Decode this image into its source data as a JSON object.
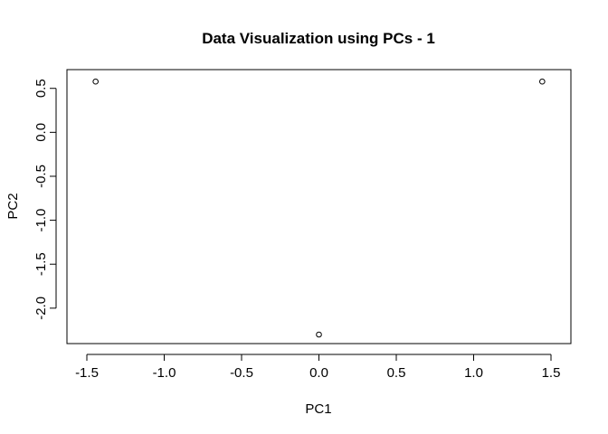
{
  "chart_data": {
    "type": "scatter",
    "title": "Data Visualization using PCs - 1",
    "xlabel": "PC1",
    "ylabel": "PC2",
    "xlim": [
      -1.5,
      1.5
    ],
    "ylim": [
      -2.3,
      0.6
    ],
    "x_ticks": [
      -1.5,
      -1.0,
      -0.5,
      0.0,
      0.5,
      1.0,
      1.5
    ],
    "x_tick_labels": [
      "-1.5",
      "-1.0",
      "-0.5",
      "0.0",
      "0.5",
      "1.0",
      "1.5"
    ],
    "y_ticks": [
      -2.0,
      -1.5,
      -1.0,
      -0.5,
      0.0,
      0.5
    ],
    "y_tick_labels": [
      "-2.0",
      "-1.5",
      "-1.0",
      "-0.5",
      "0.0",
      "0.5"
    ],
    "series": [
      {
        "name": "points",
        "marker": "open-circle",
        "x": [
          -1.4434,
          0.0,
          1.4434
        ],
        "y": [
          0.5774,
          -2.3,
          0.5774
        ]
      }
    ],
    "grid": false,
    "legend": "none",
    "color": "#000000"
  }
}
